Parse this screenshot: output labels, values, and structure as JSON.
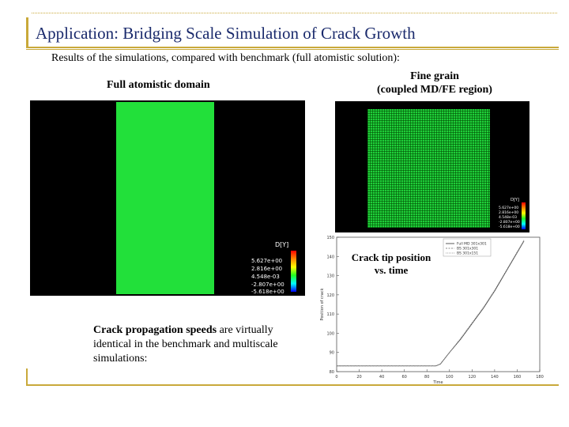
{
  "slide": {
    "title": "Application: Bridging Scale Simulation of Crack Growth",
    "subtitle": "Results of the simulations, compared with benchmark (full atomistic solution):"
  },
  "left_panel": {
    "label": "Full atomistic domain",
    "colorbar": {
      "title": "D[Y]",
      "ticks": [
        "5.627e+00",
        "2.816e+00",
        "4.548e-03",
        "-2.807e+00",
        "-5.618e+00"
      ]
    }
  },
  "right_panel": {
    "label_line1": "Fine grain",
    "label_line2": "(coupled MD/FE region)",
    "colorbar": {
      "title": "D[Y]",
      "ticks": [
        "5.627e+00",
        "2.816e+00",
        "4.548e-03",
        "-2.807e+00",
        "-5.618e+00"
      ]
    }
  },
  "chart_label": {
    "line1": "Crack tip position",
    "line2": "vs. time"
  },
  "bottom_text": {
    "bold": "Crack propagation speeds",
    "rest": " are virtually identical in the benchmark and multiscale simulations:"
  },
  "colors": {
    "title": "#1a2a6c",
    "accent_bar": "#c9a93a",
    "domain_green": "#22e03a"
  },
  "chart_data": {
    "type": "line",
    "xlabel": "Time",
    "ylabel": "Position of crack",
    "xlim": [
      0,
      180
    ],
    "ylim": [
      80,
      150
    ],
    "x_ticks": [
      "0",
      "20",
      "40",
      "60",
      "80",
      "100",
      "120",
      "140",
      "160",
      "180"
    ],
    "y_ticks": [
      "80",
      "90",
      "100",
      "110",
      "120",
      "130",
      "140",
      "150"
    ],
    "legend_position": "top-right",
    "series": [
      {
        "name": "Full MD 301x301",
        "x": [
          0,
          88,
          92,
          100,
          110,
          120,
          130,
          140,
          150,
          160,
          166
        ],
        "y": [
          83,
          83,
          84,
          90,
          97,
          105,
          113,
          122,
          132,
          142,
          148
        ]
      },
      {
        "name": "BS 301x301",
        "x": [
          0,
          88,
          92,
          100,
          110,
          120,
          130,
          140,
          150,
          160,
          166
        ],
        "y": [
          83,
          83,
          84,
          90,
          97,
          105,
          113,
          122,
          132,
          142,
          148
        ]
      },
      {
        "name": "BS 301x151",
        "x": [
          0,
          88,
          92,
          100,
          110,
          120,
          130,
          140,
          150,
          160,
          166
        ],
        "y": [
          83,
          83,
          84,
          90,
          97.5,
          105.5,
          113.5,
          122.5,
          132.5,
          142.5,
          148.5
        ]
      }
    ]
  }
}
